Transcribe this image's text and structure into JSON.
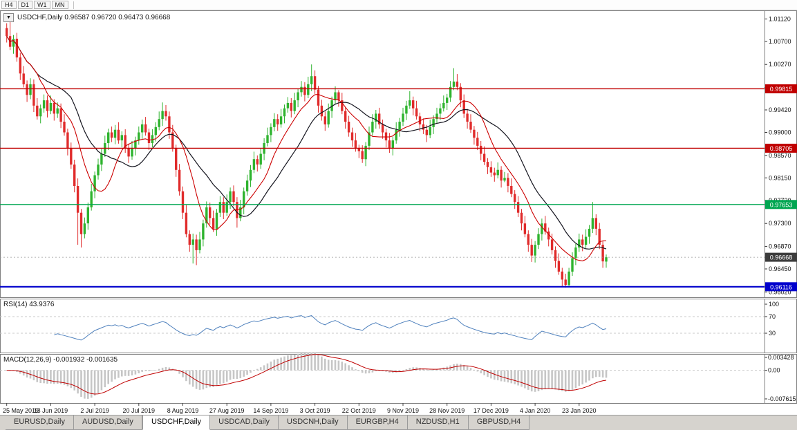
{
  "toolbar": {
    "timeframes": [
      "H4",
      "D1",
      "W1",
      "MN"
    ]
  },
  "panels": {
    "main_header": "USDCHF,Daily 0.96587 0.96720 0.96473 0.96668",
    "rsi_header": "RSI(14) 43.9376",
    "macd_header": "MACD(12,26,9) -0.001932 -0.001635",
    "dropdown_glyph": "▼"
  },
  "tabs": [
    {
      "label": "EURUSD,Daily",
      "active": false
    },
    {
      "label": "AUDUSD,Daily",
      "active": false
    },
    {
      "label": "USDCHF,Daily",
      "active": true
    },
    {
      "label": "USDCAD,Daily",
      "active": false
    },
    {
      "label": "USDCNH,Daily",
      "active": false
    },
    {
      "label": "EURGBP,H4",
      "active": false
    },
    {
      "label": "NZDUSD,H1",
      "active": false
    },
    {
      "label": "GBPUSD,H4",
      "active": false
    }
  ],
  "colors": {
    "bull": "#2eb32e",
    "bear": "#e02b2b",
    "ma_fast": "#cc0000",
    "ma_slow": "#14141e",
    "rsi_line": "#4f81bd",
    "macd_hist": "#c6c6c6",
    "macd_signal": "#c00000",
    "guide": "#c8c8c8",
    "axis_text": "#111111"
  },
  "chart_data": {
    "type": "candlestick",
    "symbol": "USDCHF",
    "timeframe": "Daily",
    "last": {
      "open": "0.96587",
      "high": "0.96720",
      "low": "0.96473",
      "close": "0.96668"
    },
    "price_range": [
      0.9592,
      1.0128
    ],
    "price_ticks": [
      "1.01120",
      "1.00700",
      "1.00270",
      "0.99840",
      "0.99420",
      "0.99000",
      "0.98570",
      "0.98150",
      "0.97730",
      "0.97300",
      "0.96870",
      "0.96450",
      "0.96020"
    ],
    "levels": [
      {
        "label": "0.99815",
        "value": 0.99815,
        "color": "#c00000",
        "badge": "#c00000",
        "width": 1.4
      },
      {
        "label": "0.98705",
        "value": 0.98705,
        "color": "#c00000",
        "badge": "#c00000",
        "width": 1.4
      },
      {
        "label": "0.97653",
        "value": 0.97653,
        "color": "#00a651",
        "badge": "#00a651",
        "width": 1.4
      },
      {
        "label": "0.96116",
        "value": 0.96116,
        "color": "#0000cc",
        "badge": "#0000cc",
        "width": 2.2
      }
    ],
    "current_price": {
      "label": "0.96668",
      "value": 0.96668,
      "badge": "#3c3c3c",
      "line_color": "#9a9a9a"
    },
    "date_ticks": [
      {
        "label": "25 May 2019",
        "bar": 0
      },
      {
        "label": "13 Jun 2019",
        "bar": 13
      },
      {
        "label": "2 Jul 2019",
        "bar": 26
      },
      {
        "label": "20 Jul 2019",
        "bar": 39
      },
      {
        "label": "8 Aug 2019",
        "bar": 52
      },
      {
        "label": "27 Aug 2019",
        "bar": 65
      },
      {
        "label": "14 Sep 2019",
        "bar": 78
      },
      {
        "label": "3 Oct 2019",
        "bar": 91
      },
      {
        "label": "22 Oct 2019",
        "bar": 104
      },
      {
        "label": "9 Nov 2019",
        "bar": 117
      },
      {
        "label": "28 Nov 2019",
        "bar": 130
      },
      {
        "label": "17 Dec 2019",
        "bar": 143
      },
      {
        "label": "4 Jan 2020",
        "bar": 156
      },
      {
        "label": "23 Jan 2020",
        "bar": 169
      }
    ],
    "indicators": {
      "rsi": {
        "name": "RSI(14)",
        "value": "43.9376",
        "period": 14,
        "axis": [
          {
            "label": "100",
            "value": 100
          },
          {
            "label": "70",
            "value": 70
          },
          {
            "label": "30",
            "value": 30
          }
        ],
        "guides": [
          70,
          30
        ]
      },
      "macd": {
        "name": "MACD(12,26,9)",
        "values": "-0.001932 -0.001635",
        "fast": 12,
        "slow": 26,
        "signal": 9,
        "range": [
          -0.007615,
          0.003428
        ],
        "axis": [
          {
            "label": "0.003428",
            "value": 0.003428
          },
          {
            "label": "0.00",
            "value": 0
          },
          {
            "label": "-0.007615",
            "value": -0.007615
          }
        ]
      }
    },
    "ohlc": [
      [
        1.0095,
        1.0104,
        1.0068,
        1.008
      ],
      [
        1.008,
        1.011,
        1.0054,
        1.006
      ],
      [
        1.006,
        1.0082,
        1.0047,
        1.0075
      ],
      [
        1.0075,
        1.0086,
        1.0032,
        1.004
      ],
      [
        1.004,
        1.0049,
        0.9998,
        1.001
      ],
      [
        1.001,
        1.0024,
        0.9984,
        0.999
      ],
      [
        0.999,
        0.9997,
        0.9957,
        0.997
      ],
      [
        0.997,
        1.0001,
        0.9962,
        0.999
      ],
      [
        0.999,
        0.9999,
        0.9938,
        0.995
      ],
      [
        0.995,
        0.9964,
        0.9924,
        0.993
      ],
      [
        0.993,
        0.9952,
        0.9917,
        0.9945
      ],
      [
        0.9945,
        0.9971,
        0.9937,
        0.996
      ],
      [
        0.996,
        0.9969,
        0.9928,
        0.994
      ],
      [
        0.994,
        0.9969,
        0.9934,
        0.9955
      ],
      [
        0.9955,
        0.9962,
        0.9922,
        0.9935
      ],
      [
        0.9935,
        0.9956,
        0.9927,
        0.9945
      ],
      [
        0.9945,
        0.9954,
        0.9908,
        0.992
      ],
      [
        0.992,
        0.9934,
        0.9894,
        0.99
      ],
      [
        0.99,
        0.9907,
        0.9857,
        0.987
      ],
      [
        0.987,
        0.9881,
        0.9832,
        0.984
      ],
      [
        0.984,
        0.9849,
        0.9788,
        0.98
      ],
      [
        0.98,
        0.9814,
        0.969,
        0.975
      ],
      [
        0.975,
        0.9757,
        0.9685,
        0.971
      ],
      [
        0.971,
        0.9741,
        0.9702,
        0.973
      ],
      [
        0.973,
        0.9769,
        0.9718,
        0.976
      ],
      [
        0.976,
        0.9804,
        0.9754,
        0.979
      ],
      [
        0.979,
        0.9827,
        0.9777,
        0.982
      ],
      [
        0.982,
        0.9851,
        0.9812,
        0.984
      ],
      [
        0.984,
        0.9869,
        0.9828,
        0.986
      ],
      [
        0.986,
        0.9894,
        0.9854,
        0.988
      ],
      [
        0.988,
        0.9907,
        0.9867,
        0.99
      ],
      [
        0.99,
        0.9911,
        0.9882,
        0.989
      ],
      [
        0.989,
        0.9914,
        0.9878,
        0.9905
      ],
      [
        0.9905,
        0.9919,
        0.9879,
        0.9885
      ],
      [
        0.9885,
        0.9902,
        0.9872,
        0.9895
      ],
      [
        0.9895,
        0.9906,
        0.9862,
        0.987
      ],
      [
        0.987,
        0.9879,
        0.9843,
        0.9855
      ],
      [
        0.9855,
        0.9884,
        0.9849,
        0.987
      ],
      [
        0.987,
        0.9892,
        0.9857,
        0.9885
      ],
      [
        0.9885,
        0.9911,
        0.9877,
        0.99
      ],
      [
        0.99,
        0.9924,
        0.9888,
        0.9915
      ],
      [
        0.9915,
        0.9929,
        0.9894,
        0.99
      ],
      [
        0.99,
        0.9907,
        0.9867,
        0.988
      ],
      [
        0.988,
        0.9906,
        0.9872,
        0.9895
      ],
      [
        0.9895,
        0.9919,
        0.9883,
        0.991
      ],
      [
        0.991,
        0.9939,
        0.9904,
        0.9925
      ],
      [
        0.9925,
        0.9956,
        0.9912,
        0.994
      ],
      [
        0.994,
        0.9951,
        0.9922,
        0.993
      ],
      [
        0.993,
        0.9939,
        0.9888,
        0.99
      ],
      [
        0.99,
        0.9914,
        0.9864,
        0.987
      ],
      [
        0.987,
        0.9877,
        0.9817,
        0.983
      ],
      [
        0.983,
        0.9841,
        0.9782,
        0.979
      ],
      [
        0.979,
        0.9799,
        0.9738,
        0.975
      ],
      [
        0.975,
        0.9764,
        0.9704,
        0.971
      ],
      [
        0.971,
        0.9717,
        0.9677,
        0.969
      ],
      [
        0.969,
        0.9711,
        0.9655,
        0.97
      ],
      [
        0.97,
        0.9709,
        0.9652,
        0.968
      ],
      [
        0.968,
        0.9714,
        0.9674,
        0.97
      ],
      [
        0.97,
        0.9737,
        0.9687,
        0.973
      ],
      [
        0.973,
        0.9771,
        0.9722,
        0.976
      ],
      [
        0.976,
        0.9769,
        0.9728,
        0.974
      ],
      [
        0.974,
        0.9754,
        0.9714,
        0.972
      ],
      [
        0.972,
        0.9757,
        0.9707,
        0.975
      ],
      [
        0.975,
        0.9781,
        0.9742,
        0.977
      ],
      [
        0.977,
        0.9779,
        0.9738,
        0.975
      ],
      [
        0.975,
        0.9784,
        0.9744,
        0.977
      ],
      [
        0.977,
        0.9797,
        0.9757,
        0.979
      ],
      [
        0.979,
        0.9801,
        0.9762,
        0.977
      ],
      [
        0.977,
        0.9779,
        0.9722,
        0.974
      ],
      [
        0.974,
        0.9774,
        0.9734,
        0.976
      ],
      [
        0.976,
        0.9797,
        0.9747,
        0.979
      ],
      [
        0.979,
        0.9821,
        0.9782,
        0.981
      ],
      [
        0.981,
        0.9839,
        0.9798,
        0.983
      ],
      [
        0.983,
        0.9864,
        0.9824,
        0.985
      ],
      [
        0.985,
        0.9857,
        0.9827,
        0.984
      ],
      [
        0.984,
        0.9871,
        0.9832,
        0.986
      ],
      [
        0.986,
        0.9889,
        0.9848,
        0.988
      ],
      [
        0.988,
        0.9909,
        0.9874,
        0.9895
      ],
      [
        0.9895,
        0.9917,
        0.9882,
        0.991
      ],
      [
        0.991,
        0.9936,
        0.9902,
        0.9925
      ],
      [
        0.9925,
        0.9934,
        0.9903,
        0.9915
      ],
      [
        0.9915,
        0.9944,
        0.9909,
        0.993
      ],
      [
        0.993,
        0.9952,
        0.9917,
        0.9945
      ],
      [
        0.9945,
        0.9966,
        0.9937,
        0.9955
      ],
      [
        0.9955,
        0.9964,
        0.9928,
        0.994
      ],
      [
        0.994,
        0.9974,
        0.9934,
        0.996
      ],
      [
        0.996,
        0.9982,
        0.9947,
        0.9975
      ],
      [
        0.9975,
        0.9996,
        0.9967,
        0.9985
      ],
      [
        0.9985,
        0.9994,
        0.9958,
        0.997
      ],
      [
        0.997,
        1.0004,
        0.9964,
        0.999
      ],
      [
        0.999,
        1.0027,
        0.9977,
        1.0005
      ],
      [
        1.0005,
        1.0016,
        0.9972,
        0.998
      ],
      [
        0.998,
        0.9987,
        0.9937,
        0.995
      ],
      [
        0.995,
        0.9961,
        0.9922,
        0.993
      ],
      [
        0.993,
        0.9939,
        0.9903,
        0.9915
      ],
      [
        0.9915,
        0.9954,
        0.9909,
        0.994
      ],
      [
        0.994,
        0.9967,
        0.9927,
        0.996
      ],
      [
        0.996,
        0.9986,
        0.9952,
        0.9975
      ],
      [
        0.9975,
        0.9979,
        0.9948,
        0.996
      ],
      [
        0.996,
        0.9974,
        0.9934,
        0.994
      ],
      [
        0.994,
        0.9947,
        0.9907,
        0.992
      ],
      [
        0.992,
        0.9931,
        0.9892,
        0.99
      ],
      [
        0.99,
        0.9909,
        0.9873,
        0.9885
      ],
      [
        0.9885,
        0.9899,
        0.9864,
        0.987
      ],
      [
        0.987,
        0.9877,
        0.9852,
        0.9865
      ],
      [
        0.9865,
        0.9876,
        0.9843,
        0.985
      ],
      [
        0.985,
        0.9882,
        0.9837,
        0.9875
      ],
      [
        0.9875,
        0.9911,
        0.9867,
        0.99
      ],
      [
        0.99,
        0.9934,
        0.9894,
        0.992
      ],
      [
        0.992,
        0.9942,
        0.9907,
        0.9935
      ],
      [
        0.9935,
        0.9946,
        0.9907,
        0.9915
      ],
      [
        0.9915,
        0.9924,
        0.9888,
        0.99
      ],
      [
        0.99,
        0.9907,
        0.9872,
        0.9885
      ],
      [
        0.9885,
        0.9899,
        0.9862,
        0.987
      ],
      [
        0.987,
        0.9892,
        0.9857,
        0.9885
      ],
      [
        0.9885,
        0.9919,
        0.9879,
        0.9905
      ],
      [
        0.9905,
        0.9927,
        0.9892,
        0.992
      ],
      [
        0.992,
        0.9946,
        0.9912,
        0.9935
      ],
      [
        0.9935,
        0.9959,
        0.9923,
        0.995
      ],
      [
        0.995,
        0.9977,
        0.9944,
        0.996
      ],
      [
        0.996,
        0.9967,
        0.9932,
        0.9945
      ],
      [
        0.9945,
        0.9959,
        0.9924,
        0.993
      ],
      [
        0.993,
        0.9937,
        0.9902,
        0.9915
      ],
      [
        0.9915,
        0.9926,
        0.9897,
        0.9905
      ],
      [
        0.9905,
        0.9914,
        0.9882,
        0.9895
      ],
      [
        0.9895,
        0.9924,
        0.9889,
        0.991
      ],
      [
        0.991,
        0.9932,
        0.9897,
        0.9925
      ],
      [
        0.9925,
        0.9946,
        0.9917,
        0.9935
      ],
      [
        0.9935,
        0.9954,
        0.9923,
        0.9945
      ],
      [
        0.9945,
        0.9969,
        0.9939,
        0.9955
      ],
      [
        0.9955,
        0.9972,
        0.9942,
        0.9965
      ],
      [
        0.9965,
        0.9996,
        0.9957,
        0.9985
      ],
      [
        0.9985,
        1.002,
        0.9979,
        0.9995
      ],
      [
        0.9995,
        1.0009,
        0.9979,
        0.9985
      ],
      [
        0.9985,
        0.9992,
        0.9947,
        0.996
      ],
      [
        0.996,
        0.9971,
        0.9927,
        0.9935
      ],
      [
        0.9935,
        0.9944,
        0.9907,
        0.992
      ],
      [
        0.992,
        0.9934,
        0.9899,
        0.9905
      ],
      [
        0.9905,
        0.9912,
        0.9877,
        0.989
      ],
      [
        0.989,
        0.9901,
        0.9867,
        0.9875
      ],
      [
        0.9875,
        0.9884,
        0.9848,
        0.986
      ],
      [
        0.986,
        0.9874,
        0.9839,
        0.9845
      ],
      [
        0.9845,
        0.9852,
        0.9822,
        0.9835
      ],
      [
        0.9835,
        0.9846,
        0.9817,
        0.9825
      ],
      [
        0.9825,
        0.9834,
        0.9808,
        0.982
      ],
      [
        0.982,
        0.9844,
        0.9814,
        0.983
      ],
      [
        0.983,
        0.9837,
        0.9797,
        0.981
      ],
      [
        0.981,
        0.9826,
        0.9807,
        0.9815
      ],
      [
        0.9815,
        0.9824,
        0.9788,
        0.98
      ],
      [
        0.98,
        0.9814,
        0.9779,
        0.9785
      ],
      [
        0.9785,
        0.9792,
        0.9757,
        0.977
      ],
      [
        0.977,
        0.9781,
        0.9742,
        0.975
      ],
      [
        0.975,
        0.9757,
        0.9717,
        0.973
      ],
      [
        0.973,
        0.9744,
        0.9704,
        0.971
      ],
      [
        0.971,
        0.9717,
        0.9677,
        0.969
      ],
      [
        0.969,
        0.9701,
        0.9658,
        0.967
      ],
      [
        0.967,
        0.9697,
        0.9657,
        0.969
      ],
      [
        0.969,
        0.9721,
        0.9682,
        0.971
      ],
      [
        0.971,
        0.9739,
        0.9698,
        0.973
      ],
      [
        0.973,
        0.9744,
        0.9709,
        0.9715
      ],
      [
        0.9715,
        0.9722,
        0.9687,
        0.97
      ],
      [
        0.97,
        0.9711,
        0.9672,
        0.968
      ],
      [
        0.968,
        0.9687,
        0.9647,
        0.966
      ],
      [
        0.966,
        0.9674,
        0.9634,
        0.964
      ],
      [
        0.964,
        0.9647,
        0.9612,
        0.9625
      ],
      [
        0.9625,
        0.9636,
        0.961,
        0.9615
      ],
      [
        0.9615,
        0.9647,
        0.9611,
        0.964
      ],
      [
        0.964,
        0.9676,
        0.9632,
        0.9665
      ],
      [
        0.9665,
        0.9692,
        0.9652,
        0.9685
      ],
      [
        0.9685,
        0.9711,
        0.9677,
        0.97
      ],
      [
        0.97,
        0.9709,
        0.9678,
        0.969
      ],
      [
        0.969,
        0.9719,
        0.9684,
        0.9705
      ],
      [
        0.9705,
        0.9727,
        0.9692,
        0.972
      ],
      [
        0.972,
        0.977,
        0.9712,
        0.974
      ],
      [
        0.974,
        0.9747,
        0.9708,
        0.972
      ],
      [
        0.972,
        0.9731,
        0.9682,
        0.969
      ],
      [
        0.969,
        0.9697,
        0.9647,
        0.9659
      ],
      [
        0.96587,
        0.9672,
        0.96473,
        0.96668
      ]
    ]
  }
}
